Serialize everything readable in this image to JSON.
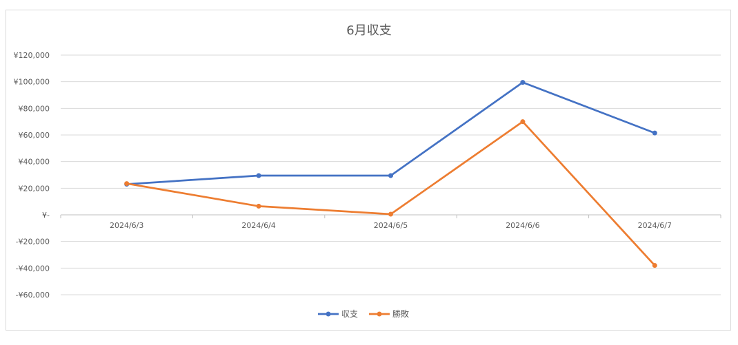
{
  "chart_data": {
    "type": "line",
    "title": "6月収支",
    "categories": [
      "2024/6/3",
      "2024/6/4",
      "2024/6/5",
      "2024/6/6",
      "2024/6/7"
    ],
    "series": [
      {
        "name": "収支",
        "values": [
          23000,
          29500,
          29500,
          99500,
          61500
        ],
        "color": "#4472c4"
      },
      {
        "name": "勝敗",
        "values": [
          23500,
          6500,
          500,
          70000,
          -38000
        ],
        "color": "#ed7d31"
      }
    ],
    "ylim": [
      -60000,
      120000
    ],
    "yticks": [
      120000,
      100000,
      80000,
      60000,
      40000,
      20000,
      0,
      -20000,
      -40000,
      -60000
    ],
    "ytick_labels": [
      "¥120,000",
      "¥100,000",
      "¥80,000",
      "¥60,000",
      "¥40,000",
      "¥20,000",
      "¥-",
      "-¥20,000",
      "-¥40,000",
      "-¥60,000"
    ],
    "grid": true,
    "legend_position": "bottom"
  }
}
